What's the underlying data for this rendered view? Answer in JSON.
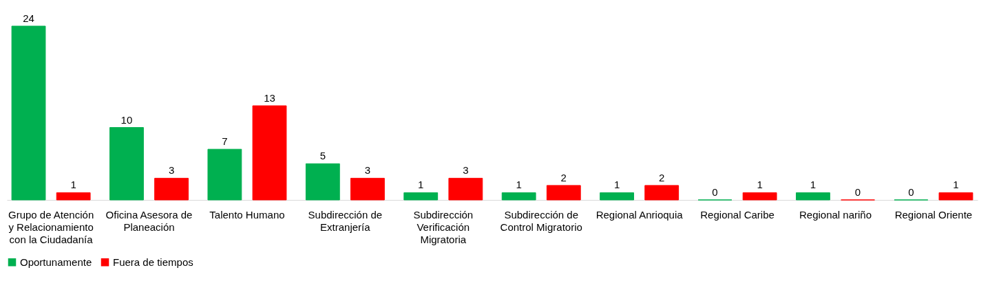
{
  "chart_data": {
    "type": "bar",
    "categories": [
      "Grupo de Atención y Relacionamiento con la Ciudadanía",
      "Oficina Asesora de Planeación",
      "Talento Humano",
      "Subdirección de Extranjería",
      "Subdirección Verificación Migratoria",
      "Subdirección de Control Migratorio",
      "Regional Anrioquia",
      "Regional Caribe",
      "Regional nariño",
      "Regional Oriente"
    ],
    "series": [
      {
        "name": "Oportunamente",
        "color": "#00b050",
        "values": [
          24,
          10,
          7,
          5,
          1,
          1,
          1,
          0,
          1,
          0
        ]
      },
      {
        "name": "Fuera de tiempos",
        "color": "#ff0000",
        "values": [
          1,
          3,
          13,
          3,
          3,
          2,
          2,
          1,
          0,
          1
        ]
      }
    ],
    "data_labels": true,
    "legend": "bottom",
    "grid": false
  }
}
